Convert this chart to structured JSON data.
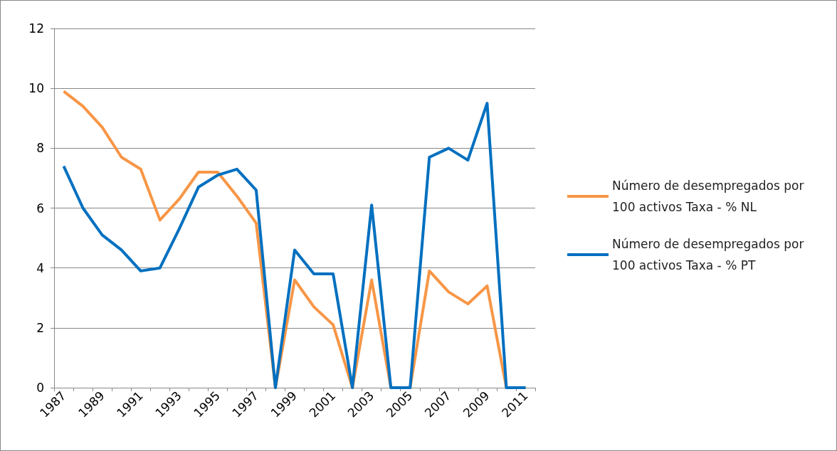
{
  "chart_data": {
    "type": "line",
    "categories": [
      "1987",
      null,
      "1989",
      null,
      "1991",
      null,
      "1993",
      null,
      "1995",
      null,
      "1997",
      null,
      "1999",
      null,
      "2001",
      null,
      "2003",
      null,
      "2005",
      null,
      "2007",
      null,
      "2009",
      null,
      "2011"
    ],
    "series": [
      {
        "name": "Número de desempregados por 100 activos Taxa - % NL",
        "color": "#f79646",
        "values": [
          9.9,
          9.4,
          8.7,
          7.7,
          7.3,
          5.6,
          6.3,
          7.2,
          7.2,
          6.4,
          5.5,
          0,
          3.6,
          2.7,
          2.1,
          0,
          3.6,
          0,
          0,
          3.9,
          3.2,
          2.8,
          3.4,
          0,
          0
        ]
      },
      {
        "name": "Número de desempregados por 100 activos Taxa - % PT",
        "color": "#0070c0",
        "values": [
          7.4,
          6.0,
          5.1,
          4.6,
          3.9,
          4.0,
          5.3,
          6.7,
          7.1,
          7.3,
          6.6,
          0,
          4.6,
          3.8,
          3.8,
          0,
          6.1,
          0,
          0,
          7.7,
          8.0,
          7.6,
          9.5,
          0,
          0
        ]
      }
    ],
    "ylim": [
      0,
      12
    ],
    "yticks": [
      0,
      2,
      4,
      6,
      8,
      10,
      12
    ],
    "grid": "y",
    "legend": "right",
    "marker": "none",
    "line_style": "solid"
  }
}
